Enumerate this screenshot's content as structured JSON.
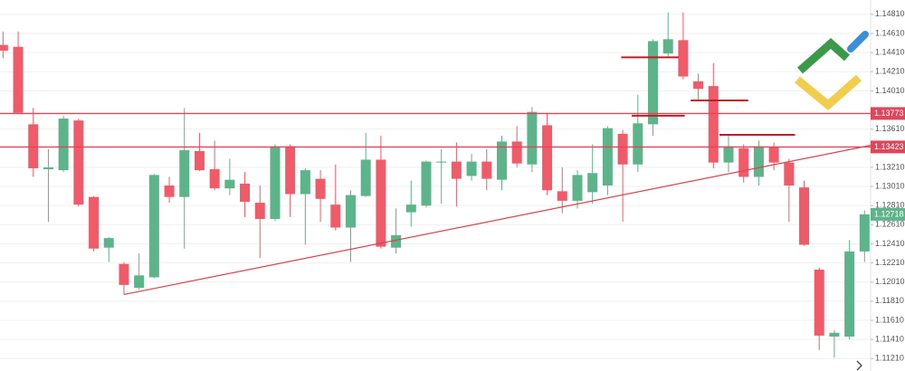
{
  "chart_data": {
    "type": "candlestick",
    "open": [
      1.1449,
      1.1447,
      1.1366,
      1.1319,
      1.1318,
      1.137,
      1.129,
      1.1237,
      1.122,
      1.1195,
      1.1206,
      1.1302,
      1.129,
      1.1338,
      1.1319,
      1.1299,
      1.1304,
      1.1284,
      1.1267,
      1.1343,
      1.1293,
      1.1309,
      1.1282,
      1.1258,
      1.1291,
      1.1329,
      1.1237,
      1.1274,
      1.1281,
      1.1326,
      1.1327,
      1.1312,
      1.1327,
      1.1308,
      1.1348,
      1.1324,
      1.1365,
      1.1296,
      1.1286,
      1.1295,
      1.1302,
      1.1356,
      1.1324,
      1.1366,
      1.144,
      1.1454,
      1.1411,
      1.1406,
      1.1326,
      1.1341,
      1.1311,
      1.1342,
      1.1326,
      1.13,
      1.1214,
      1.1144,
      1.1144,
      1.1233
    ],
    "high": [
      1.1463,
      1.1463,
      1.1383,
      1.134,
      1.1375,
      1.1372,
      1.1291,
      1.1248,
      1.1222,
      1.1231,
      1.1314,
      1.1311,
      1.1383,
      1.1357,
      1.1349,
      1.133,
      1.1316,
      1.1302,
      1.1345,
      1.1345,
      1.132,
      1.1318,
      1.1324,
      1.1297,
      1.1357,
      1.1354,
      1.1278,
      1.1307,
      1.1328,
      1.134,
      1.1347,
      1.1335,
      1.134,
      1.1354,
      1.1364,
      1.1384,
      1.1378,
      1.1321,
      1.1318,
      1.1345,
      1.1364,
      1.136,
      1.1397,
      1.1455,
      1.1483,
      1.1483,
      1.1419,
      1.143,
      1.1354,
      1.1345,
      1.1349,
      1.1347,
      1.133,
      1.1307,
      1.1216,
      1.1151,
      1.1245,
      1.1276
    ],
    "low": [
      1.1435,
      1.1378,
      1.1311,
      1.1264,
      1.1316,
      1.128,
      1.1233,
      1.1222,
      1.1188,
      1.1193,
      1.1205,
      1.1284,
      1.1236,
      1.1317,
      1.1297,
      1.1292,
      1.1269,
      1.1226,
      1.1265,
      1.1269,
      1.124,
      1.1264,
      1.1255,
      1.1222,
      1.129,
      1.1236,
      1.1231,
      1.1259,
      1.1279,
      1.1283,
      1.128,
      1.1307,
      1.1297,
      1.1297,
      1.1321,
      1.1316,
      1.1292,
      1.1273,
      1.1278,
      1.1283,
      1.1292,
      1.1264,
      1.1316,
      1.1354,
      1.1437,
      1.1413,
      1.1392,
      1.132,
      1.1316,
      1.1305,
      1.1302,
      1.1318,
      1.1264,
      1.1239,
      1.113,
      1.1122,
      1.1141,
      1.1222
    ],
    "close": [
      1.1443,
      1.1378,
      1.132,
      1.1321,
      1.1372,
      1.1282,
      1.1236,
      1.1247,
      1.1198,
      1.1208,
      1.1313,
      1.129,
      1.1339,
      1.1318,
      1.1299,
      1.1308,
      1.1285,
      1.1267,
      1.1343,
      1.1293,
      1.1318,
      1.1288,
      1.1258,
      1.1292,
      1.1329,
      1.1238,
      1.125,
      1.1282,
      1.1327,
      1.1327,
      1.1309,
      1.1327,
      1.1309,
      1.1348,
      1.1325,
      1.1379,
      1.1297,
      1.1286,
      1.1313,
      1.1315,
      1.1362,
      1.1324,
      1.1367,
      1.1453,
      1.1455,
      1.1416,
      1.1403,
      1.1326,
      1.1343,
      1.1311,
      1.1343,
      1.1326,
      1.1302,
      1.124,
      1.1145,
      1.1148,
      1.1233,
      1.12718
    ],
    "up_color": "#5db38a",
    "down_color": "#f05b69",
    "xlim": [
      -0.2,
      57.4
    ],
    "ylim": [
      1.1108,
      1.1496
    ],
    "yticks": [
      {
        "value": 1.1481,
        "label": "1.14810"
      },
      {
        "value": 1.1461,
        "label": "1.14610"
      },
      {
        "value": 1.1441,
        "label": "1.14410"
      },
      {
        "value": 1.1421,
        "label": "1.14210"
      },
      {
        "value": 1.1401,
        "label": "1.14010"
      },
      {
        "value": 1.1361,
        "label": "1.13610"
      },
      {
        "value": 1.1321,
        "label": "1.13210"
      },
      {
        "value": 1.1301,
        "label": "1.13010"
      },
      {
        "value": 1.1281,
        "label": "1.12810"
      },
      {
        "value": 1.1261,
        "label": "1.12610"
      },
      {
        "value": 1.1241,
        "label": "1.12410"
      },
      {
        "value": 1.1221,
        "label": "1.12210"
      },
      {
        "value": 1.1201,
        "label": "1.12010"
      },
      {
        "value": 1.1181,
        "label": "1.11810"
      },
      {
        "value": 1.1161,
        "label": "1.11610"
      },
      {
        "value": 1.1141,
        "label": "1.11410"
      },
      {
        "value": 1.1121,
        "label": "1.11210"
      }
    ],
    "grid": true,
    "levels": [
      {
        "value": 1.13773,
        "color": "#e0465a"
      },
      {
        "value": 1.13423,
        "color": "#e0465a"
      }
    ],
    "segments": [
      {
        "start": 40.9,
        "end": 44.7,
        "value": 1.1436
      },
      {
        "start": 41.6,
        "end": 45.1,
        "value": 1.1375
      },
      {
        "start": 45.5,
        "end": 49.3,
        "value": 1.1391
      },
      {
        "start": 47.4,
        "end": 52.4,
        "value": 1.1355
      }
    ],
    "segment_color": "#c21b2b",
    "trendline": {
      "x": [
        8,
        57.4
      ],
      "y": [
        1.1188,
        1.1344
      ],
      "color": "#d9434f"
    }
  }
}
